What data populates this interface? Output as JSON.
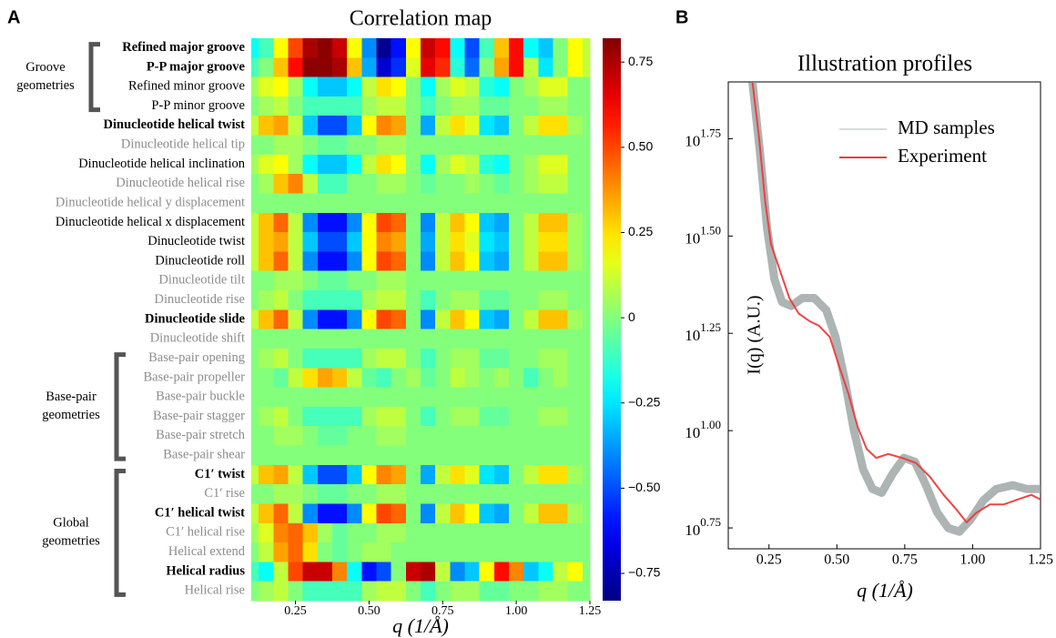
{
  "chart_data": [
    {
      "type": "heatmap",
      "panel": "A",
      "title": "Correlation map",
      "xlabel": "q (1/Å)",
      "x": [
        0.1,
        0.15,
        0.2,
        0.25,
        0.3,
        0.35,
        0.4,
        0.45,
        0.5,
        0.55,
        0.6,
        0.65,
        0.7,
        0.75,
        0.8,
        0.85,
        0.9,
        0.95,
        1.0,
        1.05,
        1.1,
        1.15,
        1.2,
        1.25
      ],
      "rows": [
        "Refined major groove",
        "P-P major groove",
        "Refined minor groove",
        "P-P minor groove",
        "Dinucleotide helical twist",
        "Dinucleotide helical tip",
        "Dinucleotide helical inclination",
        "Dinucleotide helical rise",
        "Dinucleotide helical y displacement",
        "Dinucleotide helical x displacement",
        "Dinucleotide twist",
        "Dinucleotide roll",
        "Dinucleotide tilt",
        "Dinucleotide rise",
        "Dinucleotide slide",
        "Dinucleotide shift",
        "Base-pair opening",
        "Base-pair propeller",
        "Base-pair buckle",
        "Base-pair stagger",
        "Base-pair stretch",
        "Base-pair shear",
        "C1′ twist",
        "C1′ rise",
        "C1′ helical twist",
        "C1′ helical rise",
        "Helical extend",
        "Helical radius",
        "Helical rise"
      ],
      "row_styles": [
        "bold",
        "bold",
        "normal",
        "normal",
        "bold",
        "faded",
        "normal",
        "faded",
        "faded",
        "normal",
        "normal",
        "normal",
        "faded",
        "faded",
        "bold",
        "faded",
        "faded",
        "faded",
        "faded",
        "faded",
        "faded",
        "faded",
        "bold",
        "faded",
        "bold",
        "faded",
        "faded",
        "bold",
        "faded"
      ],
      "groups": [
        {
          "lines": [
            "Groove",
            "geometries"
          ],
          "rows": [
            0,
            3
          ]
        },
        {
          "lines": [
            "Base-pair",
            "geometries"
          ],
          "rows": [
            16,
            21
          ]
        },
        {
          "lines": [
            "Global",
            "geometries"
          ],
          "rows": [
            22,
            28
          ]
        }
      ],
      "z": [
        [
          -0.2,
          -0.1,
          0.2,
          0.5,
          0.75,
          0.8,
          0.7,
          0.2,
          -0.4,
          -0.8,
          -0.6,
          0.2,
          0.7,
          0.6,
          -0.2,
          -0.5,
          -0.1,
          0.3,
          0.6,
          -0.2,
          -0.3,
          0,
          0.2,
          0.1
        ],
        [
          -0.1,
          0,
          0.3,
          0.6,
          0.8,
          0.8,
          0.75,
          0.3,
          -0.35,
          -0.7,
          -0.55,
          0.15,
          0.65,
          0.55,
          -0.15,
          -0.45,
          0,
          0.35,
          0.6,
          0.1,
          -0.25,
          0,
          0.2,
          0.1
        ],
        [
          0.05,
          0.15,
          0.2,
          0.05,
          -0.2,
          -0.3,
          -0.3,
          -0.2,
          0.1,
          0.25,
          0.2,
          0,
          -0.2,
          0.05,
          0.15,
          0.1,
          -0.15,
          -0.2,
          0,
          0.05,
          0.15,
          0.15,
          0,
          0
        ],
        [
          0,
          0.05,
          0.1,
          0,
          -0.1,
          -0.1,
          -0.1,
          -0.1,
          0.05,
          0.1,
          0.1,
          0,
          -0.1,
          0,
          0.05,
          0.05,
          -0.05,
          -0.05,
          0,
          0,
          0.05,
          0.05,
          0,
          0
        ],
        [
          0.1,
          0.3,
          0.35,
          0.1,
          -0.3,
          -0.5,
          -0.5,
          -0.3,
          0.2,
          0.4,
          0.35,
          0,
          -0.35,
          0.1,
          0.25,
          0.15,
          -0.25,
          -0.3,
          0,
          0.1,
          0.25,
          0.25,
          0.05,
          0
        ],
        [
          0,
          0,
          0.05,
          0.05,
          0,
          -0.05,
          -0.05,
          0,
          0,
          0.05,
          0.05,
          0,
          0,
          0,
          0,
          0,
          0,
          0,
          0,
          0,
          0,
          0,
          0,
          0
        ],
        [
          0.05,
          0.15,
          0.2,
          0.05,
          -0.2,
          -0.3,
          -0.3,
          -0.2,
          0.1,
          0.25,
          0.2,
          0,
          -0.2,
          0.05,
          0.15,
          0.1,
          -0.15,
          -0.2,
          0,
          0.05,
          0.15,
          0.15,
          0,
          0
        ],
        [
          0,
          0.05,
          0.3,
          0.4,
          0.1,
          -0.1,
          -0.1,
          0,
          0,
          0.05,
          0.05,
          0,
          -0.05,
          0,
          0,
          0.05,
          0,
          -0.05,
          0,
          0.05,
          0.1,
          0.1,
          0,
          0
        ],
        [
          0,
          0,
          0,
          0,
          0,
          0,
          0,
          0,
          0,
          0,
          0,
          0,
          0,
          0,
          0,
          0,
          0,
          0,
          0,
          0,
          0,
          0,
          0,
          0
        ],
        [
          0.1,
          0.3,
          0.45,
          0.1,
          -0.4,
          -0.6,
          -0.6,
          -0.4,
          0.2,
          0.5,
          0.45,
          0,
          -0.4,
          0.1,
          0.3,
          0.2,
          -0.3,
          -0.35,
          0,
          0.1,
          0.3,
          0.3,
          0.05,
          0
        ],
        [
          0.1,
          0.3,
          0.35,
          0.1,
          -0.3,
          -0.5,
          -0.5,
          -0.3,
          0.2,
          0.4,
          0.35,
          0,
          -0.35,
          0.1,
          0.25,
          0.15,
          -0.25,
          -0.3,
          0,
          0.1,
          0.25,
          0.25,
          0.05,
          0
        ],
        [
          0.1,
          0.3,
          0.45,
          0.1,
          -0.4,
          -0.6,
          -0.6,
          -0.4,
          0.2,
          0.5,
          0.45,
          0,
          -0.4,
          0.1,
          0.3,
          0.2,
          -0.3,
          -0.35,
          0,
          0.1,
          0.3,
          0.3,
          0.05,
          0
        ],
        [
          0,
          0,
          0.05,
          0.05,
          0,
          -0.05,
          -0.05,
          0,
          0,
          0.05,
          0.05,
          0,
          0,
          0,
          0,
          0,
          0,
          0,
          0,
          0,
          0,
          0,
          0,
          0
        ],
        [
          0,
          0.05,
          0.1,
          0,
          -0.1,
          -0.1,
          -0.1,
          -0.1,
          0.05,
          0.1,
          0.1,
          0,
          -0.1,
          0,
          0.05,
          0.05,
          -0.05,
          -0.05,
          0,
          0,
          0.05,
          0.05,
          0,
          0
        ],
        [
          0.1,
          0.3,
          0.45,
          0.1,
          -0.4,
          -0.6,
          -0.6,
          -0.4,
          0.2,
          0.5,
          0.45,
          0,
          -0.4,
          0.1,
          0.3,
          0.2,
          -0.3,
          -0.35,
          0,
          0.1,
          0.3,
          0.3,
          0.05,
          0
        ],
        [
          0,
          0,
          0,
          0,
          0,
          0,
          0,
          0,
          0,
          0,
          0,
          0,
          0,
          0,
          0,
          0,
          0,
          0,
          0,
          0,
          0,
          0,
          0,
          0
        ],
        [
          0,
          0.05,
          0.1,
          0,
          -0.1,
          -0.1,
          -0.1,
          -0.1,
          0.05,
          0.1,
          0.1,
          0,
          -0.1,
          0,
          0.05,
          0.05,
          -0.05,
          -0.05,
          0,
          0,
          0.05,
          0.05,
          0,
          0
        ],
        [
          0,
          0,
          -0.05,
          0.1,
          0.25,
          0.35,
          0.3,
          0.1,
          -0.05,
          -0.1,
          0,
          0.05,
          -0.05,
          0,
          0.1,
          0.05,
          0,
          0.05,
          0,
          -0.1,
          0,
          0.05,
          0,
          0
        ],
        [
          0,
          0,
          0,
          0,
          0,
          0,
          0,
          0,
          0,
          0,
          0,
          0,
          0,
          0,
          0,
          0,
          0,
          0,
          0,
          0,
          0,
          0,
          0,
          0
        ],
        [
          0,
          0.05,
          0.1,
          0,
          -0.1,
          -0.1,
          -0.1,
          -0.1,
          0.05,
          0.1,
          0.1,
          0,
          -0.1,
          0,
          0.05,
          0.05,
          -0.05,
          -0.05,
          0,
          0,
          0.05,
          0.05,
          0,
          0
        ],
        [
          0,
          0,
          0.05,
          0.05,
          0,
          -0.05,
          -0.05,
          0,
          0,
          0.05,
          0.05,
          0,
          0,
          0,
          0,
          0,
          0,
          0,
          0,
          0,
          0,
          0,
          0,
          0
        ],
        [
          0,
          0,
          0,
          0,
          0,
          0,
          0,
          0,
          0,
          0,
          0,
          0,
          0,
          0,
          0,
          0,
          0,
          0,
          0,
          0,
          0,
          0,
          0,
          0
        ],
        [
          0.1,
          0.3,
          0.35,
          0.1,
          -0.3,
          -0.5,
          -0.5,
          -0.3,
          0.2,
          0.4,
          0.35,
          0,
          -0.35,
          0.1,
          0.25,
          0.15,
          -0.25,
          -0.3,
          0,
          0.1,
          0.25,
          0.25,
          0.05,
          0
        ],
        [
          0,
          0,
          0.05,
          0.05,
          0,
          -0.05,
          -0.05,
          0,
          0,
          0.05,
          0.05,
          0,
          0,
          0,
          0,
          0,
          0,
          0,
          0,
          0,
          0,
          0,
          0,
          0
        ],
        [
          0.1,
          0.3,
          0.45,
          0.1,
          -0.4,
          -0.6,
          -0.6,
          -0.4,
          0.2,
          0.5,
          0.45,
          0,
          -0.4,
          0.1,
          0.3,
          0.2,
          -0.3,
          -0.35,
          0,
          0.1,
          0.3,
          0.3,
          0.05,
          0
        ],
        [
          0.05,
          0.15,
          0.4,
          0.45,
          0.3,
          0.05,
          -0.05,
          0,
          0,
          0.05,
          0.05,
          0,
          0,
          0,
          0,
          0,
          0,
          0,
          0,
          0,
          0,
          0,
          0,
          0
        ],
        [
          0,
          0.1,
          0.35,
          0.45,
          0.25,
          0,
          -0.05,
          0,
          0.05,
          0.05,
          0,
          0,
          0,
          0,
          0,
          0,
          0,
          0,
          0,
          0,
          0,
          0,
          0,
          0
        ],
        [
          -0.1,
          -0.2,
          0.1,
          0.5,
          0.7,
          0.7,
          0.4,
          -0.2,
          -0.6,
          -0.5,
          0,
          0.7,
          0.75,
          0.1,
          -0.4,
          -0.3,
          0.2,
          0.6,
          0.4,
          -0.3,
          -0.2,
          0.1,
          0.2,
          0
        ],
        [
          0,
          0.05,
          0.1,
          0,
          -0.1,
          -0.1,
          -0.1,
          -0.1,
          0.05,
          0.1,
          0.1,
          0,
          -0.1,
          0,
          0.05,
          0.05,
          -0.05,
          -0.05,
          0,
          0,
          0.05,
          0.05,
          0,
          0
        ]
      ],
      "colormap": "jet",
      "xlim": [
        0.1,
        1.25
      ],
      "xticks": [
        0.25,
        {
          "value": 0.5,
          "label": "0.50"
        },
        0.75,
        {
          "value": 1,
          "label": "1.00"
        },
        1.25
      ],
      "clim": [
        -0.83,
        0.82
      ],
      "cticks": [
        0.75,
        {
          "value": 0.5,
          "label": "0.50"
        },
        0.25,
        0,
        {
          "value": -0.25,
          "label": "−0.25"
        },
        {
          "value": -0.5,
          "label": "−0.50"
        },
        {
          "value": -0.75,
          "label": "−0.75"
        }
      ]
    },
    {
      "type": "line",
      "panel": "B",
      "title": "Illustration profiles",
      "xlabel": "q (1/Å)",
      "ylabel": "I(q) (A.U.)",
      "yscale": "log",
      "xlim": [
        0.1,
        1.25
      ],
      "ylim": [
        4.97,
        78.7
      ],
      "xticks": [
        0.25,
        {
          "value": 0.5,
          "label": "0.50"
        },
        0.75,
        {
          "value": 1,
          "label": "1.00"
        },
        1.25
      ],
      "yticks": [
        {
          "value": 5.623,
          "label": "10",
          "exponent": "0.75"
        },
        {
          "value": 10,
          "label": "10",
          "exponent": "1.00"
        },
        {
          "value": 17.783,
          "label": "10",
          "exponent": "1.25"
        },
        {
          "value": 31.623,
          "label": "10",
          "exponent": "1.50"
        },
        {
          "value": 56.234,
          "label": "10",
          "exponent": "1.75"
        }
      ],
      "legend": "upper right",
      "series": [
        {
          "name": "MD samples",
          "color": "#8a9494",
          "x": [
            0.189,
            0.216,
            0.243,
            0.27,
            0.298,
            0.332,
            0.372,
            0.417,
            0.461,
            0.495,
            0.529,
            0.563,
            0.597,
            0.631,
            0.665,
            0.706,
            0.747,
            0.787,
            0.828,
            0.869,
            0.91,
            0.951,
            0.991,
            1.039,
            1.087,
            1.148,
            1.199,
            1.25
          ],
          "values": [
            78.7,
            52.5,
            33.1,
            24.5,
            21.4,
            20.9,
            21.9,
            21.9,
            20.4,
            17.4,
            13.5,
            10.0,
            7.94,
            7.08,
            6.92,
            7.76,
            8.51,
            8.32,
            7.24,
            6.17,
            5.62,
            5.5,
            5.89,
            6.61,
            7.08,
            7.24,
            7.08,
            7.08
          ]
        },
        {
          "name": "Experiment",
          "color": "#ee3b3b",
          "x": [
            0.189,
            0.213,
            0.236,
            0.257,
            0.291,
            0.325,
            0.359,
            0.4,
            0.434,
            0.474,
            0.509,
            0.543,
            0.577,
            0.61,
            0.645,
            0.689,
            0.74,
            0.791,
            0.842,
            0.893,
            0.937,
            0.978,
            1.012,
            1.063,
            1.114,
            1.165,
            1.216,
            1.25
          ],
          "values": [
            78.7,
            56.9,
            38.9,
            30.2,
            25.7,
            21.9,
            20.0,
            19.1,
            18.6,
            17.4,
            14.6,
            12.4,
            10.2,
            8.97,
            8.51,
            8.71,
            8.51,
            8.26,
            7.62,
            6.84,
            6.31,
            5.81,
            6.14,
            6.46,
            6.46,
            6.65,
            6.84,
            6.65
          ]
        }
      ]
    }
  ]
}
